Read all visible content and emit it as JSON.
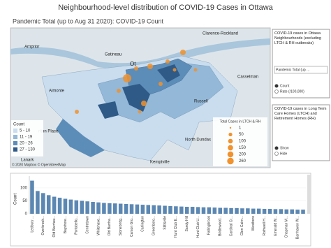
{
  "title": "Neighbourhood-level distribution of COVID-19 Cases in Ottawa",
  "subtitle": "Pandemic Total (up to Aug 31 2020): COVID-19 Count",
  "map": {
    "places": [
      "Arnprior",
      "Gatineau",
      "Clarence-Rockland",
      "Ot",
      "Casselman",
      "Almonte",
      "Russell",
      "rlton Place",
      "North Dundas",
      "Kemptville",
      "Lanark"
    ],
    "count_legend": {
      "title": "Count",
      "items": [
        {
          "label": "5 - 10",
          "color": "#c9ddef"
        },
        {
          "label": "11 - 19",
          "color": "#93b8d8"
        },
        {
          "label": "20 - 26",
          "color": "#5c8db8"
        },
        {
          "label": "27 - 130",
          "color": "#2f5a87"
        }
      ]
    },
    "size_legend": {
      "title": "Total Cases in LTCH & RH",
      "values": [
        1,
        50,
        100,
        150,
        200,
        260
      ],
      "color": "#f0922e"
    },
    "attribution": "© 2020 Mapbox © OpenStreetMap"
  },
  "panels": [
    {
      "title": "COVID-19 cases in Ottawa Neighbourhoods (excluding LTCH & RH outbreaks)",
      "dropdown": "Pandemic Total (up ...",
      "options": [
        "Count",
        "Rate (/100,000)"
      ]
    },
    {
      "title": "COVID-19 cases in Long Term Care Homes (LTCH) and Retirement Homes (RH)",
      "options": [
        "Show",
        "Hide"
      ]
    }
  ],
  "chart_data": {
    "type": "bar",
    "y_label": "Count",
    "color": "#5b87b2",
    "categories": [
      "Ledbury ...",
      null,
      "Overbrook...",
      null,
      "Old Barrhav...",
      null,
      "Bayshore...",
      null,
      "Portobello...",
      null,
      "Centretown",
      null,
      "Whitehave...",
      null,
      "Old Barrha...",
      null,
      "Stonebridg...",
      null,
      "Carson Gro...",
      null,
      "Carlington",
      null,
      "Greenboro...",
      null,
      "Stittsville",
      null,
      "Hunt Club E...",
      null,
      "Sandy Hill",
      null,
      "Hunt Club U...",
      null,
      "Fallingbrook",
      null,
      "Bridlewood...",
      null,
      "Cardinal Cr...",
      null,
      "Glen Cairn...",
      null,
      "Westboro",
      null,
      "Rothwell H...",
      null,
      "Emerald W...",
      null,
      "Chapman M...",
      null,
      "Barrhaven W...",
      null
    ],
    "values": [
      128,
      88,
      80,
      72,
      66,
      62,
      58,
      55,
      52,
      50,
      48,
      46,
      44,
      42,
      41,
      40,
      39,
      38,
      37,
      36,
      35,
      34,
      33,
      32,
      31,
      30,
      29,
      28,
      27,
      27,
      26,
      25,
      25,
      24,
      23,
      23,
      22,
      22,
      21,
      21,
      20,
      20,
      19,
      19,
      18,
      18,
      17,
      17,
      16,
      16
    ],
    "ylim": [
      0,
      135
    ],
    "yticks": [
      0,
      50,
      100
    ]
  }
}
